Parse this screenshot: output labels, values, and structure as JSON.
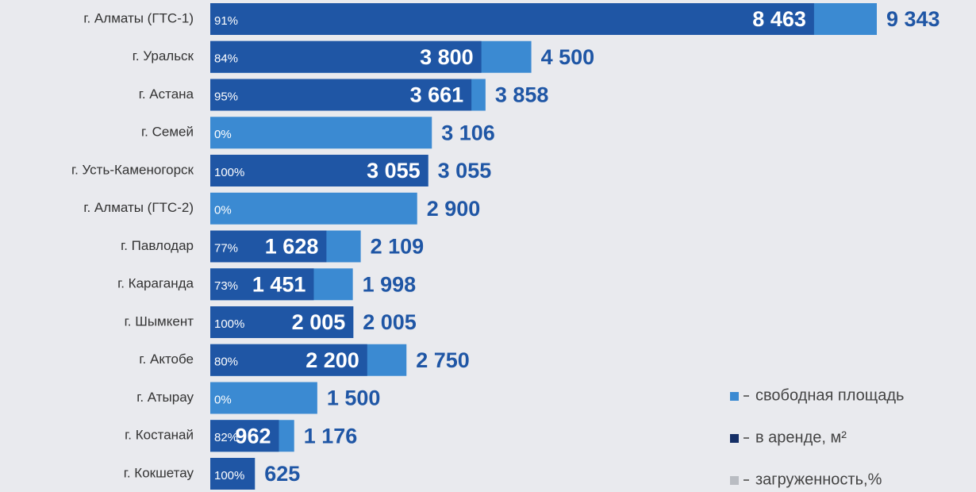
{
  "chart_data": {
    "type": "bar",
    "categories": [
      "г. Алматы (ГТС-1)",
      "г. Уральск",
      "г. Астана",
      "г. Семей",
      "г. Усть-Каменогорск",
      "г. Алматы (ГТС-2)",
      "г. Павлодар",
      "г. Караганда",
      "г. Шымкент",
      "г. Актобе",
      "г. Атырау",
      "г. Костанай",
      "г. Кокшетау"
    ],
    "series": [
      {
        "name": "свободная площадь",
        "color": "#3b8ad2",
        "values": [
          9343,
          4500,
          3858,
          3106,
          3055,
          2900,
          2109,
          1998,
          2005,
          2750,
          1500,
          1176,
          625
        ],
        "value_labels": [
          "9 343",
          "4 500",
          "3 858",
          "3 106",
          "3 055",
          "2 900",
          "2 109",
          "1 998",
          "2 005",
          "2 750",
          "1 500",
          "1 176",
          "625"
        ]
      },
      {
        "name": "в аренде, м²",
        "color": "#1f56a5",
        "values": [
          8463,
          3800,
          3661,
          0,
          3055,
          0,
          1628,
          1451,
          2005,
          2200,
          0,
          962,
          625
        ],
        "value_labels": [
          "8 463",
          "3 800",
          "3 661",
          null,
          "3 055",
          null,
          "1 628",
          "1 451",
          "2 005",
          "2 200",
          null,
          "962",
          null
        ]
      },
      {
        "name": "загруженность,%",
        "color": "#b9bcc2",
        "values": [
          91,
          84,
          95,
          0,
          100,
          0,
          77,
          73,
          100,
          80,
          0,
          82,
          100
        ],
        "value_labels": [
          "91%",
          "84%",
          "95%",
          "0%",
          "100%",
          "0%",
          "77%",
          "73%",
          "100%",
          "80%",
          "0%",
          "82%",
          "100%"
        ]
      }
    ]
  }
}
